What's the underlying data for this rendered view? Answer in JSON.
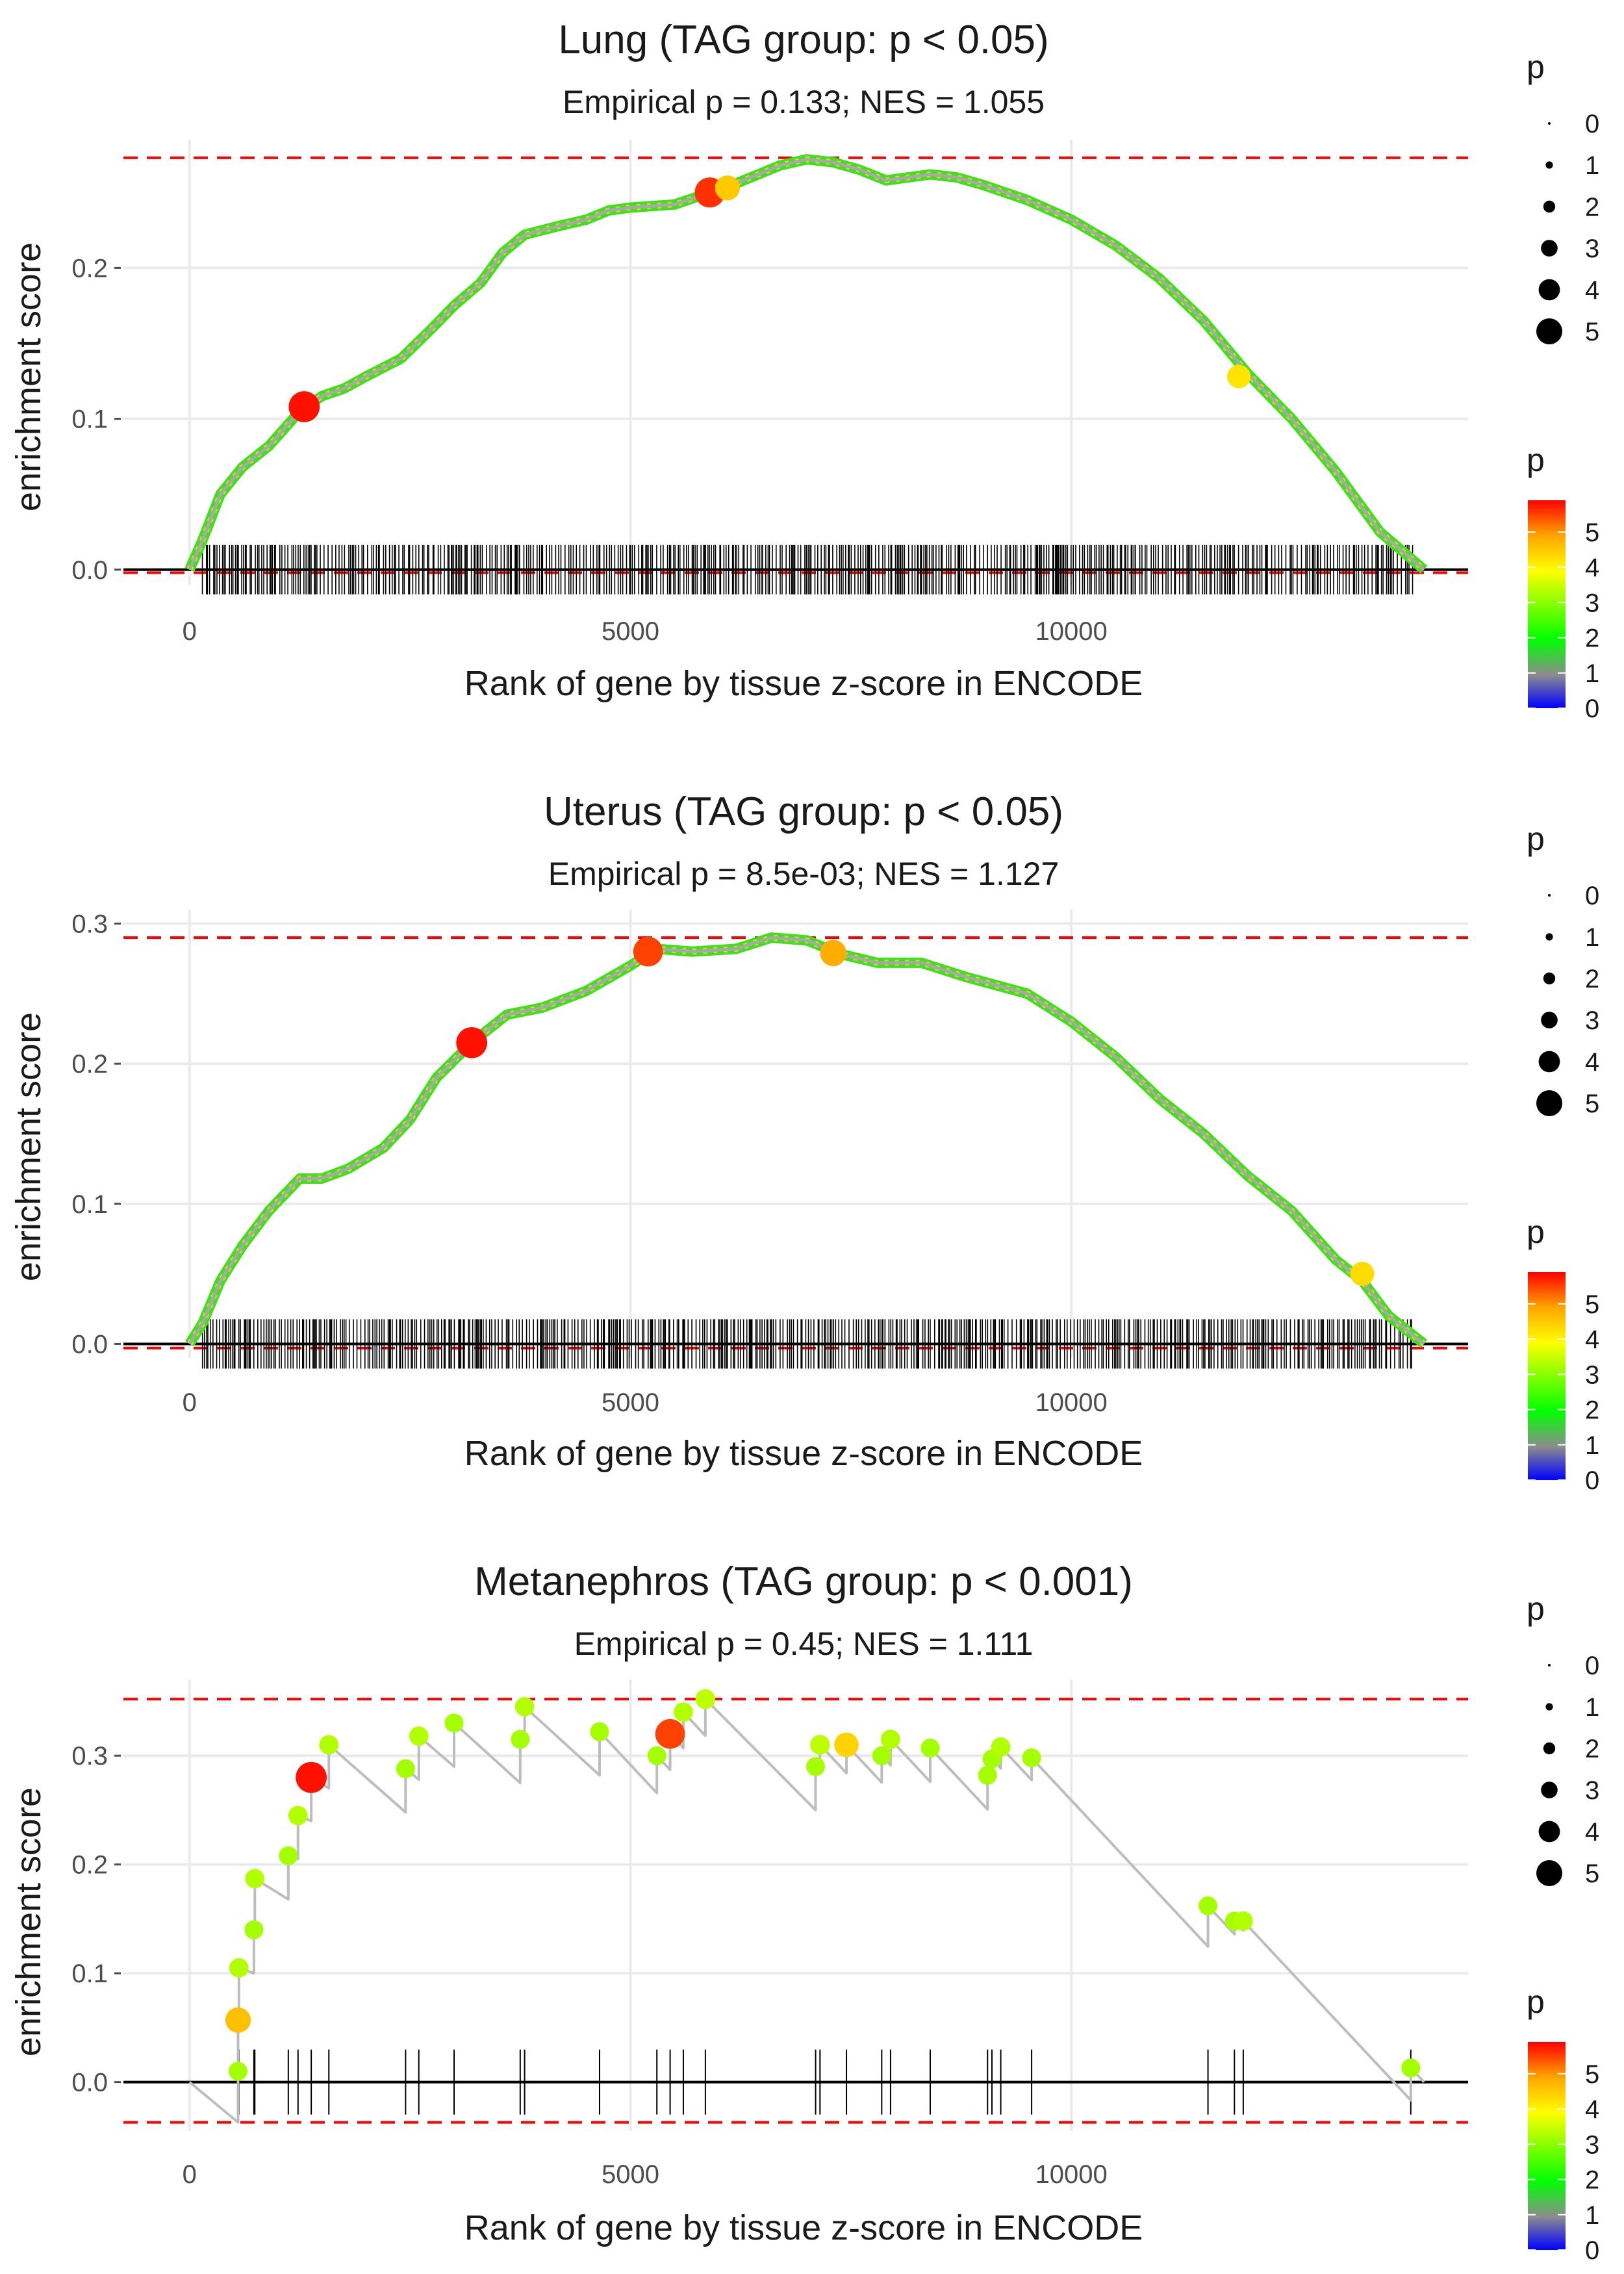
{
  "chart_data": [
    {
      "type": "line",
      "title": "Lung (TAG group: p < 0.05)",
      "subtitle": "Empirical p = 0.133; NES = 1.055",
      "xlabel": "Rank of gene by tissue z-score in ENCODE",
      "ylabel": "enrichment score",
      "xlim": [
        -750,
        14500
      ],
      "ylim": [
        -0.01,
        0.285
      ],
      "x_ticks": [
        0,
        5000,
        10000
      ],
      "x_tick_labels": [
        "0",
        "5000",
        "10000"
      ],
      "y_ticks": [
        0.0,
        0.1,
        0.2
      ],
      "y_tick_labels": [
        "0.0",
        "0.1",
        "0.2"
      ],
      "max_es_line": 0.273,
      "min_es_line": -0.002,
      "n_genes": 14000,
      "dense": true,
      "curve_points": [
        [
          0,
          0
        ],
        [
          150,
          0.02
        ],
        [
          350,
          0.05
        ],
        [
          600,
          0.068
        ],
        [
          900,
          0.082
        ],
        [
          1250,
          0.105
        ],
        [
          1500,
          0.115
        ],
        [
          1750,
          0.12
        ],
        [
          2000,
          0.128
        ],
        [
          2400,
          0.14
        ],
        [
          2750,
          0.16
        ],
        [
          3000,
          0.175
        ],
        [
          3300,
          0.19
        ],
        [
          3550,
          0.21
        ],
        [
          3800,
          0.222
        ],
        [
          4200,
          0.228
        ],
        [
          4500,
          0.232
        ],
        [
          4750,
          0.238
        ],
        [
          5000,
          0.24
        ],
        [
          5500,
          0.242
        ],
        [
          5900,
          0.25
        ],
        [
          6200,
          0.256
        ],
        [
          6700,
          0.268
        ],
        [
          7000,
          0.272
        ],
        [
          7300,
          0.27
        ],
        [
          7600,
          0.265
        ],
        [
          7900,
          0.258
        ],
        [
          8400,
          0.262
        ],
        [
          8700,
          0.26
        ],
        [
          9000,
          0.255
        ],
        [
          9500,
          0.245
        ],
        [
          10000,
          0.232
        ],
        [
          10500,
          0.215
        ],
        [
          11000,
          0.193
        ],
        [
          11500,
          0.165
        ],
        [
          12000,
          0.13
        ],
        [
          12500,
          0.1
        ],
        [
          13000,
          0.065
        ],
        [
          13500,
          0.025
        ],
        [
          14000,
          0.0
        ]
      ],
      "highlight_points": [
        {
          "x": 1300,
          "y": 0.108,
          "p": 5.8
        },
        {
          "x": 5900,
          "y": 0.25,
          "p": 5.6
        },
        {
          "x": 6100,
          "y": 0.253,
          "p": 4.5
        },
        {
          "x": 11900,
          "y": 0.128,
          "p": 4.2
        }
      ],
      "size_legend": {
        "title": "p",
        "labels": [
          "0",
          "1",
          "2",
          "3",
          "4",
          "5"
        ]
      },
      "color_legend": {
        "title": "p",
        "labels": [
          "0",
          "1",
          "2",
          "3",
          "4",
          "5"
        ]
      }
    },
    {
      "type": "line",
      "title": "Uterus (TAG group: p < 0.05)",
      "subtitle": "Empirical p = 8.5e-03; NES = 1.127",
      "xlabel": "Rank of gene by tissue z-score in ENCODE",
      "ylabel": "enrichment score",
      "xlim": [
        -750,
        14500
      ],
      "ylim": [
        -0.01,
        0.31
      ],
      "x_ticks": [
        0,
        5000,
        10000
      ],
      "x_tick_labels": [
        "0",
        "5000",
        "10000"
      ],
      "y_ticks": [
        0.0,
        0.1,
        0.2,
        0.3
      ],
      "y_tick_labels": [
        "0.0",
        "0.1",
        "0.2",
        "0.3"
      ],
      "max_es_line": 0.29,
      "min_es_line": -0.003,
      "n_genes": 14000,
      "dense": true,
      "curve_points": [
        [
          0,
          0
        ],
        [
          150,
          0.015
        ],
        [
          350,
          0.045
        ],
        [
          600,
          0.07
        ],
        [
          900,
          0.095
        ],
        [
          1250,
          0.118
        ],
        [
          1500,
          0.118
        ],
        [
          1800,
          0.125
        ],
        [
          2200,
          0.14
        ],
        [
          2500,
          0.16
        ],
        [
          2800,
          0.19
        ],
        [
          3200,
          0.215
        ],
        [
          3600,
          0.235
        ],
        [
          4000,
          0.24
        ],
        [
          4500,
          0.252
        ],
        [
          5000,
          0.27
        ],
        [
          5300,
          0.282
        ],
        [
          5700,
          0.28
        ],
        [
          6200,
          0.282
        ],
        [
          6600,
          0.29
        ],
        [
          7000,
          0.288
        ],
        [
          7400,
          0.278
        ],
        [
          7800,
          0.272
        ],
        [
          8300,
          0.272
        ],
        [
          8800,
          0.262
        ],
        [
          9500,
          0.25
        ],
        [
          10000,
          0.23
        ],
        [
          10500,
          0.205
        ],
        [
          11000,
          0.175
        ],
        [
          11500,
          0.15
        ],
        [
          12000,
          0.12
        ],
        [
          12500,
          0.095
        ],
        [
          13000,
          0.06
        ],
        [
          13300,
          0.045
        ],
        [
          13600,
          0.02
        ],
        [
          14000,
          0.0
        ]
      ],
      "highlight_points": [
        {
          "x": 3200,
          "y": 0.215,
          "p": 5.8
        },
        {
          "x": 5200,
          "y": 0.28,
          "p": 5.5
        },
        {
          "x": 7300,
          "y": 0.279,
          "p": 4.8
        },
        {
          "x": 13300,
          "y": 0.05,
          "p": 4.3
        }
      ],
      "size_legend": {
        "title": "p",
        "labels": [
          "0",
          "1",
          "2",
          "3",
          "4",
          "5"
        ]
      },
      "color_legend": {
        "title": "p",
        "labels": [
          "0",
          "1",
          "2",
          "3",
          "4",
          "5"
        ]
      }
    },
    {
      "type": "line",
      "title": "Metanephros (TAG group: p < 0.001)",
      "subtitle": "Empirical p = 0.45; NES = 1.111",
      "xlabel": "Rank of gene by tissue z-score in ENCODE",
      "ylabel": "enrichment score",
      "xlim": [
        -750,
        14500
      ],
      "ylim": [
        -0.045,
        0.37
      ],
      "x_ticks": [
        0,
        5000,
        10000
      ],
      "x_tick_labels": [
        "0",
        "5000",
        "10000"
      ],
      "y_ticks": [
        0.0,
        0.1,
        0.2,
        0.3
      ],
      "y_tick_labels": [
        "0.0",
        "0.1",
        "0.2",
        "0.3"
      ],
      "max_es_line": 0.352,
      "min_es_line": -0.037,
      "n_genes": 14000,
      "dense": false,
      "hits": [
        {
          "x": 550,
          "y": 0.01,
          "p": 3.2
        },
        {
          "x": 550,
          "y": 0.057,
          "p": 4.6
        },
        {
          "x": 560,
          "y": 0.105,
          "p": 3.3
        },
        {
          "x": 730,
          "y": 0.14,
          "p": 3.2
        },
        {
          "x": 740,
          "y": 0.187,
          "p": 3.3
        },
        {
          "x": 1120,
          "y": 0.208,
          "p": 3.2
        },
        {
          "x": 1230,
          "y": 0.245,
          "p": 3.3
        },
        {
          "x": 1380,
          "y": 0.28,
          "p": 5.8
        },
        {
          "x": 1580,
          "y": 0.31,
          "p": 3.3
        },
        {
          "x": 2450,
          "y": 0.288,
          "p": 3.2
        },
        {
          "x": 2600,
          "y": 0.318,
          "p": 3.3
        },
        {
          "x": 3000,
          "y": 0.33,
          "p": 3.2
        },
        {
          "x": 3750,
          "y": 0.315,
          "p": 3.2
        },
        {
          "x": 3800,
          "y": 0.345,
          "p": 3.3
        },
        {
          "x": 4650,
          "y": 0.322,
          "p": 3.2
        },
        {
          "x": 5300,
          "y": 0.3,
          "p": 3.2
        },
        {
          "x": 5450,
          "y": 0.32,
          "p": 5.5
        },
        {
          "x": 5600,
          "y": 0.34,
          "p": 3.3
        },
        {
          "x": 5850,
          "y": 0.352,
          "p": 3.4
        },
        {
          "x": 7100,
          "y": 0.29,
          "p": 3.2
        },
        {
          "x": 7150,
          "y": 0.31,
          "p": 3.4
        },
        {
          "x": 7450,
          "y": 0.31,
          "p": 4.4
        },
        {
          "x": 7850,
          "y": 0.3,
          "p": 3.2
        },
        {
          "x": 7950,
          "y": 0.315,
          "p": 3.3
        },
        {
          "x": 8400,
          "y": 0.307,
          "p": 3.2
        },
        {
          "x": 9050,
          "y": 0.282,
          "p": 3.2
        },
        {
          "x": 9100,
          "y": 0.297,
          "p": 3.2
        },
        {
          "x": 9200,
          "y": 0.308,
          "p": 3.3
        },
        {
          "x": 9550,
          "y": 0.298,
          "p": 3.2
        },
        {
          "x": 11550,
          "y": 0.162,
          "p": 3.2
        },
        {
          "x": 11850,
          "y": 0.148,
          "p": 3.2
        },
        {
          "x": 11950,
          "y": 0.148,
          "p": 3.3
        },
        {
          "x": 13850,
          "y": 0.013,
          "p": 3.2
        }
      ],
      "end_point": {
        "x": 14000,
        "y": 0.0
      },
      "size_legend": {
        "title": "p",
        "labels": [
          "0",
          "1",
          "2",
          "3",
          "4",
          "5"
        ]
      },
      "color_legend": {
        "title": "p",
        "labels": [
          "0",
          "1",
          "2",
          "3",
          "4",
          "5"
        ]
      }
    }
  ]
}
